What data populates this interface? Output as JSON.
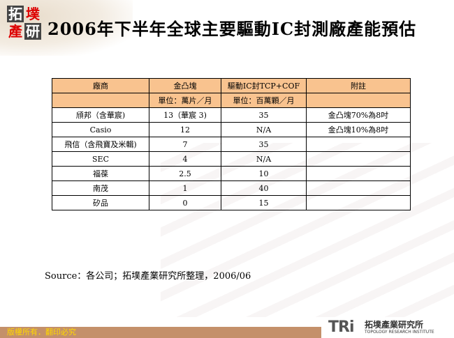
{
  "title": "2006年下半年全球主要驅動IC封測廠產能預估",
  "logo": {
    "chars": [
      "拓",
      "墣",
      "產",
      "研"
    ]
  },
  "table": {
    "headers": [
      "廠商",
      "金凸塊",
      "驅動IC封TCP+COF",
      "附註"
    ],
    "units": [
      "",
      "單位：萬片／月",
      "單位：百萬顆／月",
      ""
    ],
    "rows": [
      [
        "頎邦（含華宸)",
        "13（華宸 3)",
        "35",
        "金凸塊70%為8吋"
      ],
      [
        "Casio",
        "12",
        "N/A",
        "金凸塊10%為8吋"
      ],
      [
        "飛信（含飛寶及米輯)",
        "7",
        "35",
        ""
      ],
      [
        "SEC",
        "4",
        "N/A",
        ""
      ],
      [
        "福葆",
        "2.5",
        "10",
        ""
      ],
      [
        "南茂",
        "1",
        "40",
        ""
      ],
      [
        "矽品",
        "0",
        "15",
        ""
      ]
    ]
  },
  "source": "Source：各公司；拓墣產業研究所整理，2006/06",
  "footer": {
    "copyright": "版權所有．翻印必究",
    "brand_logo": "TRi",
    "brand_name": "拓墣產業研究所",
    "brand_sub": "TOPOLOGY RESEARCH INSTITUTE"
  },
  "colors": {
    "header_fill": "#f9c38f",
    "footer_bar": "#c4906a",
    "copyright_text": "#ffd700"
  }
}
